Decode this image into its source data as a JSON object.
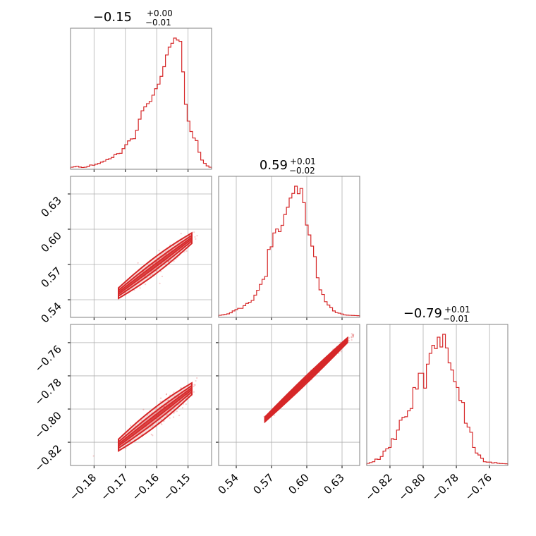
{
  "chart_data": {
    "type": "corner",
    "color": "#d62728",
    "grid": true,
    "parameters": [
      {
        "title": {
          "median": "−0.15",
          "plus": "+0.00",
          "minus": "−0.01"
        },
        "range": [
          -0.1875,
          -0.1425
        ],
        "ticks": [
          -0.18,
          -0.17,
          -0.16,
          -0.15
        ],
        "tick_labels": [
          "−0.18",
          "−0.17",
          "−0.16",
          "−0.15"
        ],
        "hist": {
          "range": [
            -0.1875,
            -0.1425
          ],
          "values": [
            0.005,
            0.008,
            0.012,
            0.006,
            0.003,
            0.005,
            0.01,
            0.022,
            0.02,
            0.028,
            0.034,
            0.044,
            0.052,
            0.063,
            0.07,
            0.08,
            0.102,
            0.11,
            0.112,
            0.148,
            0.178,
            0.208,
            0.223,
            0.225,
            0.29,
            0.375,
            0.44,
            0.47,
            0.495,
            0.512,
            0.56,
            0.61,
            0.645,
            0.705,
            0.78,
            0.87,
            0.93,
            0.96,
            1.0,
            0.985,
            0.975,
            0.74,
            0.49,
            0.36,
            0.28,
            0.23,
            0.21,
            0.12,
            0.06,
            0.035,
            0.015,
            0.005
          ]
        }
      },
      {
        "title": {
          "median": "0.59",
          "plus": "+0.01",
          "minus": "−0.02"
        },
        "range": [
          0.525,
          0.645
        ],
        "ticks": [
          0.54,
          0.57,
          0.6,
          0.63
        ],
        "tick_labels": [
          "0.54",
          "0.57",
          "0.60",
          "0.63"
        ],
        "yticks": [
          0.54,
          0.57,
          0.6,
          0.63
        ],
        "hist": {
          "range": [
            0.525,
            0.645
          ],
          "values": [
            0.005,
            0.008,
            0.012,
            0.016,
            0.024,
            0.038,
            0.048,
            0.058,
            0.058,
            0.078,
            0.095,
            0.104,
            0.118,
            0.158,
            0.195,
            0.24,
            0.278,
            0.3,
            0.505,
            0.525,
            0.63,
            0.66,
            0.64,
            0.688,
            0.77,
            0.825,
            0.895,
            0.93,
            0.985,
            0.928,
            0.968,
            0.86,
            0.69,
            0.615,
            0.53,
            0.45,
            0.29,
            0.198,
            0.163,
            0.108,
            0.083,
            0.063,
            0.038,
            0.025,
            0.021,
            0.015,
            0.008,
            0.006,
            0.005,
            0.004,
            0.003,
            0.002
          ]
        }
      },
      {
        "title": {
          "median": "−0.79",
          "plus": "+0.01",
          "minus": "−0.01"
        },
        "range": [
          -0.834,
          -0.749
        ],
        "ticks": [
          -0.82,
          -0.8,
          -0.78,
          -0.76
        ],
        "tick_labels": [
          "−0.82",
          "−0.80",
          "−0.78",
          "−0.76"
        ],
        "yticks": [
          -0.82,
          -0.8,
          -0.78,
          -0.76
        ],
        "hist": {
          "range": [
            -0.834,
            -0.749
          ],
          "values": [
            0.005,
            0.012,
            0.018,
            0.038,
            0.036,
            0.058,
            0.1,
            0.118,
            0.128,
            0.195,
            0.188,
            0.262,
            0.338,
            0.36,
            0.365,
            0.41,
            0.428,
            0.59,
            0.578,
            0.7,
            0.7,
            0.585,
            0.77,
            0.853,
            0.915,
            0.89,
            0.978,
            0.902,
            1.0,
            0.895,
            0.78,
            0.725,
            0.635,
            0.59,
            0.49,
            0.475,
            0.315,
            0.285,
            0.245,
            0.128,
            0.085,
            0.07,
            0.045,
            0.018,
            0.015,
            0.015,
            0.008,
            0.012,
            0.006,
            0.004,
            0.003,
            0.002
          ]
        }
      }
    ],
    "pairs": [
      {
        "x": 0,
        "y": 1,
        "slope": 2.0,
        "intercept": 0.89,
        "spread": 0.0028,
        "sigma": 0.0055,
        "xmin": -0.183,
        "xmax": -0.147
      },
      {
        "x": 0,
        "y": 2,
        "slope": 1.45,
        "intercept": -0.572,
        "spread": 0.0022,
        "sigma": 0.0055,
        "xmin": -0.183,
        "xmax": -0.147
      },
      {
        "x": 1,
        "y": 2,
        "slope": 0.68,
        "intercept": -1.19,
        "spread": 0.0009,
        "sigma": 0.016,
        "xmin": 0.532,
        "xmax": 0.64
      }
    ]
  }
}
